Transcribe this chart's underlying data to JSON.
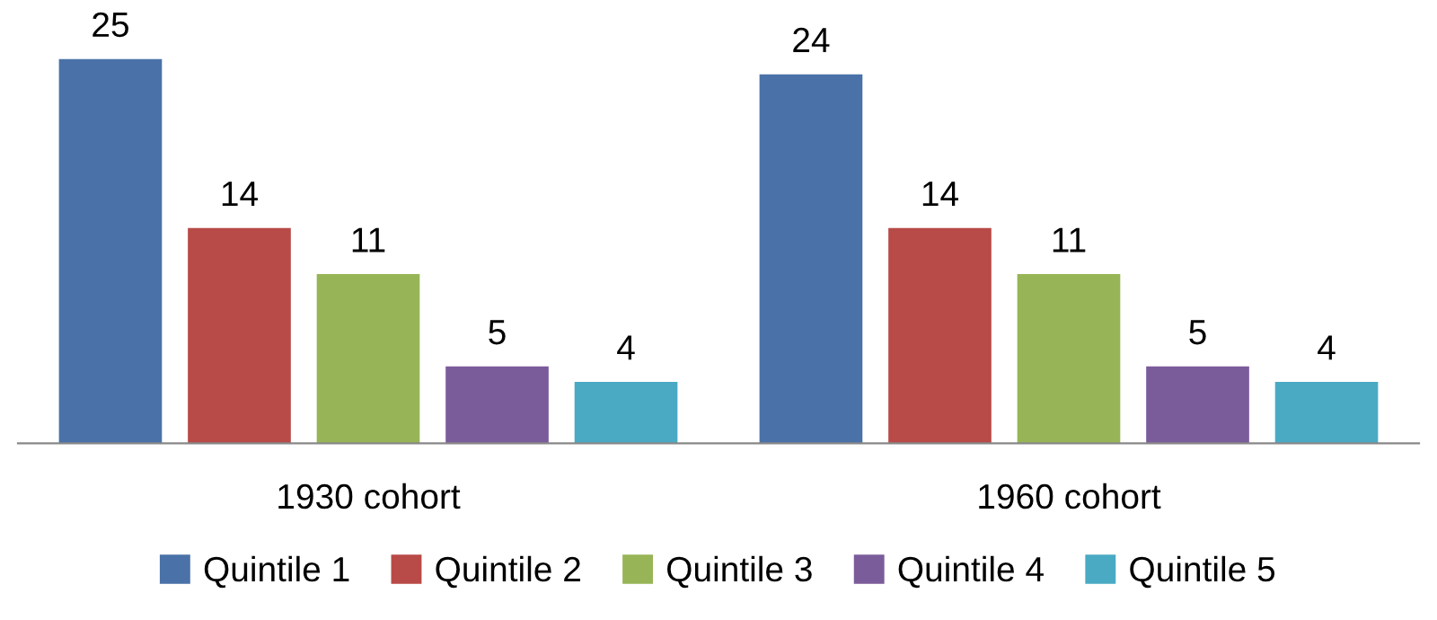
{
  "chart_data": {
    "type": "bar",
    "categories": [
      "1930 cohort",
      "1960 cohort"
    ],
    "series": [
      {
        "name": "Quintile 1",
        "color": "#4a72a8",
        "values": [
          25,
          24
        ]
      },
      {
        "name": "Quintile 2",
        "color": "#b84a47",
        "values": [
          14,
          14
        ]
      },
      {
        "name": "Quintile 3",
        "color": "#97b556",
        "values": [
          11,
          11
        ]
      },
      {
        "name": "Quintile 4",
        "color": "#7b5c9a",
        "values": [
          5,
          5
        ]
      },
      {
        "name": "Quintile 5",
        "color": "#4aaac4",
        "values": [
          4,
          4
        ]
      }
    ],
    "data_labels": true,
    "tick_labels": "x",
    "grid": false,
    "legend": "bottom"
  }
}
